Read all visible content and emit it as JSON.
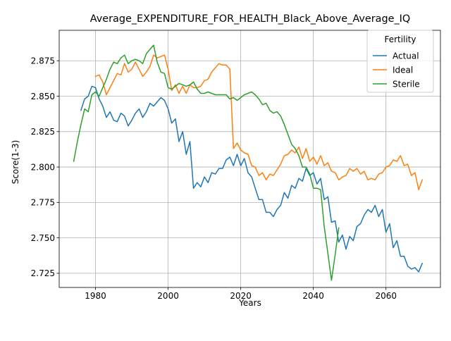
{
  "chart_data": {
    "type": "line",
    "title": "Average_EXPENDITURE_FOR_HEALTH_Black_Above_Average_IQ",
    "xlabel": "Years",
    "ylabel": "Score(1-3)",
    "xlim": [
      1970,
      2075
    ],
    "ylim": [
      2.715,
      2.8965
    ],
    "x_ticks": [
      1980,
      2000,
      2020,
      2040,
      2060
    ],
    "y_ticks": [
      2.725,
      2.75,
      2.775,
      2.8,
      2.825,
      2.85,
      2.875
    ],
    "x_tick_labels": [
      "1980",
      "2000",
      "2020",
      "2040",
      "2060"
    ],
    "y_tick_labels": [
      "2.725",
      "2.750",
      "2.775",
      "2.800",
      "2.825",
      "2.850",
      "2.875"
    ],
    "grid": true,
    "legend": {
      "title": "Fertility",
      "placement": "top-right"
    },
    "series": [
      {
        "name": "Actual",
        "color": "#1f77b4",
        "x": [
          1976,
          1977,
          1978,
          1979,
          1980,
          1981,
          1982,
          1983,
          1984,
          1985,
          1986,
          1987,
          1988,
          1989,
          1990,
          1991,
          1992,
          1993,
          1994,
          1995,
          1996,
          1997,
          1998,
          1999,
          2000,
          2001,
          2002,
          2003,
          2004,
          2005,
          2006,
          2007,
          2008,
          2009,
          2010,
          2011,
          2012,
          2013,
          2014,
          2015,
          2016,
          2017,
          2018,
          2019,
          2020,
          2021,
          2022,
          2023,
          2024,
          2025,
          2026,
          2027,
          2028,
          2029,
          2030,
          2031,
          2032,
          2033,
          2034,
          2035,
          2036,
          2037,
          2038,
          2039,
          2040,
          2041,
          2042,
          2043,
          2044,
          2045,
          2046,
          2047,
          2048,
          2049,
          2050,
          2051,
          2052,
          2053,
          2054,
          2055,
          2056,
          2057,
          2058,
          2059,
          2060,
          2061,
          2062,
          2063,
          2064,
          2065,
          2066,
          2067,
          2068,
          2069,
          2070
        ],
        "y": [
          2.84,
          2.848,
          2.85,
          2.857,
          2.856,
          2.848,
          2.843,
          2.835,
          2.839,
          2.833,
          2.832,
          2.838,
          2.836,
          2.829,
          2.833,
          2.838,
          2.841,
          2.835,
          2.839,
          2.845,
          2.843,
          2.846,
          2.849,
          2.847,
          2.841,
          2.831,
          2.834,
          2.818,
          2.825,
          2.809,
          2.818,
          2.785,
          2.789,
          2.786,
          2.793,
          2.789,
          2.796,
          2.795,
          2.799,
          2.799,
          2.805,
          2.807,
          2.801,
          2.809,
          2.801,
          2.806,
          2.796,
          2.793,
          2.785,
          2.777,
          2.777,
          2.768,
          2.768,
          2.765,
          2.77,
          2.773,
          2.782,
          2.778,
          2.787,
          2.785,
          2.792,
          2.79,
          2.799,
          2.794,
          2.796,
          2.788,
          2.792,
          2.777,
          2.779,
          2.761,
          2.762,
          2.747,
          2.752,
          2.742,
          2.751,
          2.748,
          2.758,
          2.76,
          2.766,
          2.77,
          2.768,
          2.773,
          2.765,
          2.77,
          2.754,
          2.76,
          2.743,
          2.748,
          2.737,
          2.737,
          2.73,
          2.728,
          2.729,
          2.726,
          2.732
        ]
      },
      {
        "name": "Ideal",
        "color": "#ff7f0e",
        "x": [
          1980,
          1981,
          1982,
          1983,
          1984,
          1985,
          1986,
          1987,
          1988,
          1989,
          1990,
          1991,
          1992,
          1993,
          1994,
          1995,
          1996,
          1997,
          1998,
          1999,
          2000,
          2001,
          2002,
          2003,
          2004,
          2005,
          2006,
          2007,
          2008,
          2009,
          2010,
          2011,
          2012,
          2013,
          2014,
          2015,
          2016,
          2017,
          2018,
          2019,
          2020,
          2021,
          2022,
          2023,
          2024,
          2025,
          2026,
          2027,
          2028,
          2029,
          2030,
          2031,
          2032,
          2033,
          2034,
          2035,
          2036,
          2037,
          2038,
          2039,
          2040,
          2041,
          2042,
          2043,
          2044,
          2045,
          2046,
          2047,
          2048,
          2049,
          2050,
          2051,
          2052,
          2053,
          2054,
          2055,
          2056,
          2057,
          2058,
          2059,
          2060,
          2061,
          2062,
          2063,
          2064,
          2065,
          2066,
          2067,
          2068,
          2069,
          2070
        ],
        "y": [
          2.864,
          2.865,
          2.86,
          2.851,
          2.856,
          2.861,
          2.866,
          2.865,
          2.873,
          2.867,
          2.869,
          2.874,
          2.869,
          2.864,
          2.867,
          2.871,
          2.879,
          2.877,
          2.878,
          2.879,
          2.869,
          2.854,
          2.858,
          2.852,
          2.857,
          2.852,
          2.858,
          2.856,
          2.856,
          2.857,
          2.861,
          2.862,
          2.867,
          2.87,
          2.873,
          2.872,
          2.872,
          2.869,
          2.813,
          2.817,
          2.812,
          2.81,
          2.809,
          2.801,
          2.8,
          2.794,
          2.796,
          2.791,
          2.795,
          2.794,
          2.798,
          2.802,
          2.808,
          2.809,
          2.812,
          2.81,
          2.814,
          2.806,
          2.813,
          2.804,
          2.807,
          2.802,
          2.808,
          2.801,
          2.803,
          2.797,
          2.796,
          2.791,
          2.793,
          2.794,
          2.799,
          2.797,
          2.799,
          2.795,
          2.797,
          2.791,
          2.792,
          2.791,
          2.795,
          2.796,
          2.8,
          2.801,
          2.805,
          2.804,
          2.808,
          2.801,
          2.802,
          2.794,
          2.796,
          2.784,
          2.791
        ]
      },
      {
        "name": "Sterile",
        "color": "#2ca02c",
        "x": [
          1974,
          1975,
          1976,
          1977,
          1978,
          1979,
          1980,
          1981,
          1982,
          1983,
          1984,
          1985,
          1986,
          1987,
          1988,
          1989,
          1990,
          1991,
          1992,
          1993,
          1994,
          1995,
          1996,
          1997,
          1998,
          1999,
          2000,
          2001,
          2002,
          2003,
          2004,
          2005,
          2006,
          2007,
          2008,
          2009,
          2010,
          2011,
          2012,
          2013,
          2014,
          2015,
          2016,
          2017,
          2018,
          2019,
          2020,
          2021,
          2022,
          2023,
          2024,
          2025,
          2026,
          2027,
          2028,
          2029,
          2030,
          2031,
          2032,
          2033,
          2034,
          2035,
          2036,
          2037,
          2038,
          2039,
          2040,
          2041,
          2042,
          2043,
          2044,
          2045,
          2046,
          2047
        ],
        "y": [
          2.804,
          2.818,
          2.83,
          2.841,
          2.839,
          2.851,
          2.853,
          2.85,
          2.856,
          2.862,
          2.869,
          2.874,
          2.873,
          2.877,
          2.879,
          2.873,
          2.875,
          2.876,
          2.875,
          2.873,
          2.88,
          2.883,
          2.886,
          2.874,
          2.867,
          2.866,
          2.856,
          2.855,
          2.857,
          2.859,
          2.858,
          2.857,
          2.858,
          2.86,
          2.855,
          2.852,
          2.852,
          2.853,
          2.852,
          2.851,
          2.851,
          2.851,
          2.851,
          2.848,
          2.849,
          2.847,
          2.849,
          2.851,
          2.852,
          2.853,
          2.851,
          2.848,
          2.844,
          2.845,
          2.84,
          2.838,
          2.839,
          2.836,
          2.83,
          2.823,
          2.816,
          2.813,
          2.808,
          2.8,
          2.8,
          2.795,
          2.785,
          2.785,
          2.784,
          2.758,
          2.739,
          2.72,
          2.738,
          2.757
        ]
      }
    ]
  }
}
